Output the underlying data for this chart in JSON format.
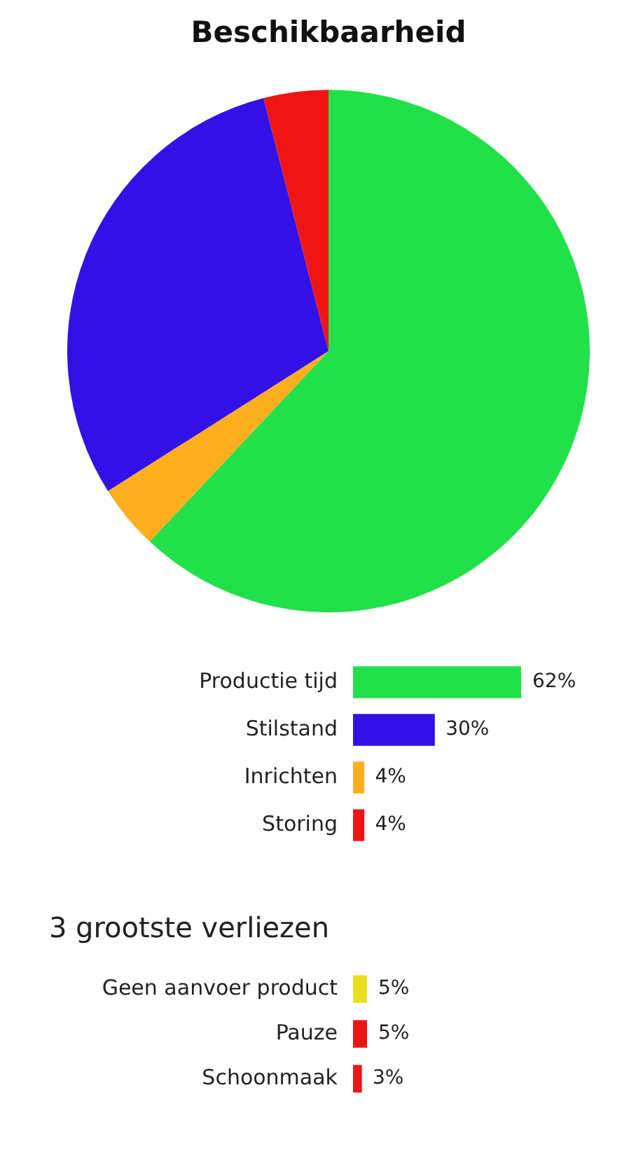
{
  "chart_data": [
    {
      "type": "pie",
      "title": "Beschikbaarheid",
      "categories": [
        null,
        null,
        null,
        null
      ],
      "values": [
        62,
        4,
        30,
        4
      ],
      "colors": [
        "#22e04a",
        "#ffae1f",
        "#3311e6",
        "#f01515"
      ],
      "legend": false
    },
    {
      "type": "bar",
      "orientation": "horizontal",
      "categories": [
        "Productie tijd",
        "Stilstand",
        "Inrichten",
        "Storing"
      ],
      "values": [
        62,
        30,
        4,
        4
      ],
      "colors": [
        "#22e04a",
        "#3311e6",
        "#ffae1f",
        "#f01515"
      ],
      "value_labels": [
        "62%",
        "30%",
        "4%",
        "4%"
      ],
      "tick_labels": "y",
      "grid": false,
      "legend": false
    },
    {
      "type": "bar",
      "orientation": "horizontal",
      "title": "3 grootste verliezen",
      "categories": [
        "Geen aanvoer product",
        "Pauze",
        "Schoonmaak"
      ],
      "values": [
        5,
        5,
        3
      ],
      "colors": [
        "#e8e020",
        "#f01515",
        "#f01515"
      ],
      "value_labels": [
        "5%",
        "5%",
        "3%"
      ],
      "tick_labels": "y",
      "grid": false,
      "legend": false
    }
  ]
}
